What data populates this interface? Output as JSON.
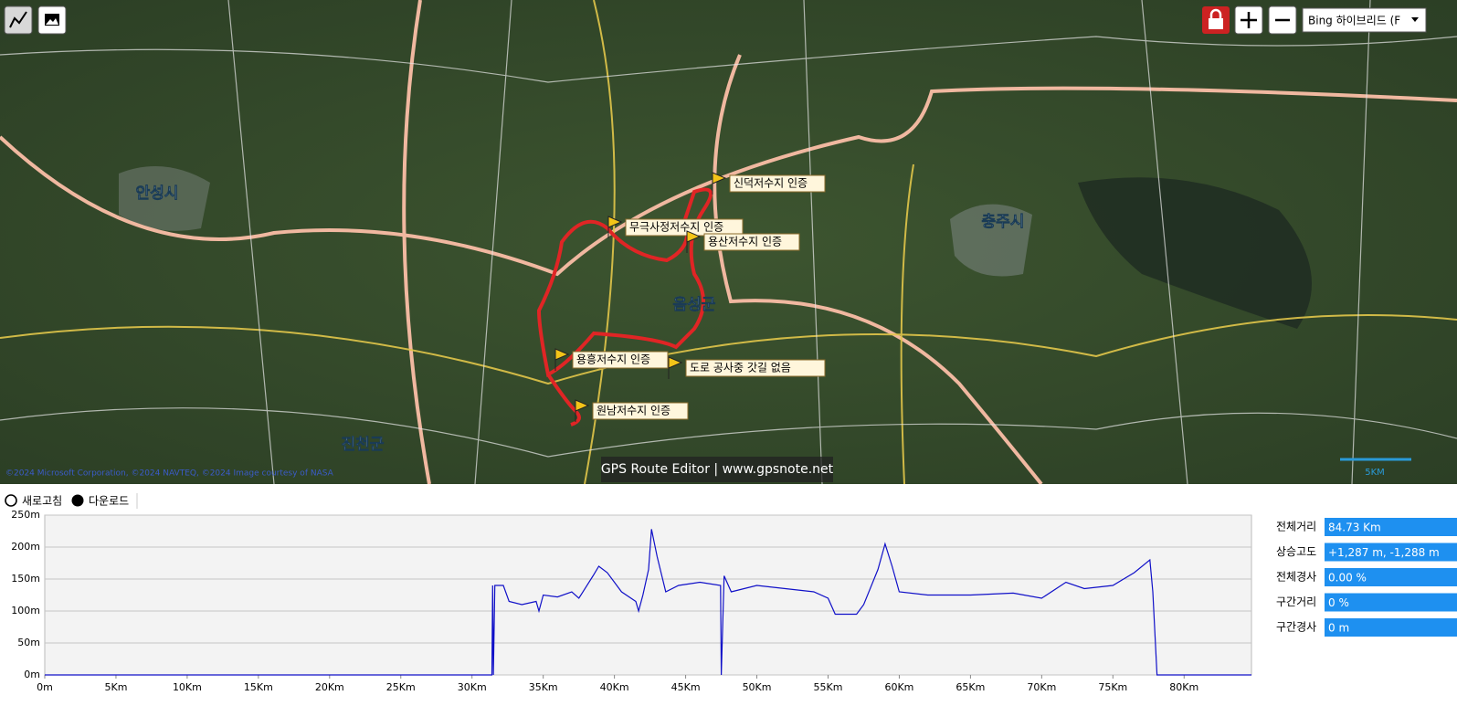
{
  "map_toolbar": {
    "map_type": "Bing 하이브리드 (F"
  },
  "map": {
    "cities": [
      "안성시",
      "충주시",
      "음성군",
      "진천군"
    ],
    "waypoints": [
      "신덕저수지 인증",
      "무극사정저수지 인증",
      "용산저수지 인증",
      "용흥저수지 인증",
      "도로 공사중 갓길 없음",
      "원남저수지 인증"
    ],
    "attribution": "©2024 Microsoft Corporation, ©2024 NAVTEQ, ©2024 Image courtesy of NASA",
    "watermark": "GPS Route Editor | www.gpsnote.net",
    "scale": "5KM"
  },
  "profile_toolbar": {
    "refresh": "새로고침",
    "download": "다운로드"
  },
  "chart_data": {
    "type": "line",
    "color": "#1010c8",
    "x": [
      0,
      31.4,
      31.45,
      31.5,
      31.6,
      32.2,
      32.6,
      33.5,
      34.5,
      34.7,
      35,
      36,
      37,
      37.5,
      38.5,
      38.9,
      39.5,
      40.5,
      41.5,
      41.7,
      42,
      42.4,
      42.6,
      43,
      43.6,
      44.5,
      46,
      47.45,
      47.5,
      47.7,
      48.2,
      50,
      52,
      54,
      55,
      55.5,
      57,
      57.5,
      58.5,
      59,
      59.5,
      60,
      62,
      65,
      68,
      70,
      71.7,
      73,
      75,
      76.5,
      77.6,
      77.8,
      78.1,
      84.73
    ],
    "values": [
      0,
      0,
      140,
      0,
      140,
      140,
      115,
      110,
      115,
      100,
      125,
      122,
      130,
      120,
      155,
      170,
      160,
      130,
      115,
      100,
      125,
      165,
      228,
      185,
      130,
      140,
      145,
      140,
      0,
      155,
      130,
      140,
      135,
      130,
      120,
      95,
      95,
      110,
      165,
      205,
      170,
      130,
      125,
      125,
      128,
      120,
      145,
      135,
      140,
      160,
      180,
      130,
      0,
      0
    ],
    "xlim": [
      0,
      84.73
    ],
    "ylim": [
      0,
      250
    ],
    "xticks": [
      {
        "value": 0,
        "label": "0m"
      },
      {
        "value": 5,
        "label": "5Km"
      },
      {
        "value": 10,
        "label": "10Km"
      },
      {
        "value": 15,
        "label": "15Km"
      },
      {
        "value": 20,
        "label": "20Km"
      },
      {
        "value": 25,
        "label": "25Km"
      },
      {
        "value": 30,
        "label": "30Km"
      },
      {
        "value": 35,
        "label": "35Km"
      },
      {
        "value": 40,
        "label": "40Km"
      },
      {
        "value": 45,
        "label": "45Km"
      },
      {
        "value": 50,
        "label": "50Km"
      },
      {
        "value": 55,
        "label": "55Km"
      },
      {
        "value": 60,
        "label": "60Km"
      },
      {
        "value": 65,
        "label": "65Km"
      },
      {
        "value": 70,
        "label": "70Km"
      },
      {
        "value": 75,
        "label": "75Km"
      },
      {
        "value": 80,
        "label": "80Km"
      }
    ],
    "yticks": [
      {
        "value": 0,
        "label": "0m"
      },
      {
        "value": 50,
        "label": "50m"
      },
      {
        "value": 100,
        "label": "100m"
      },
      {
        "value": 150,
        "label": "150m"
      },
      {
        "value": 200,
        "label": "200m"
      },
      {
        "value": 250,
        "label": "250m"
      }
    ],
    "grid": true
  },
  "stats": [
    {
      "label": "전체거리",
      "value": "84.73 Km"
    },
    {
      "label": "상승고도",
      "value": "+1,287 m, -1,288 m"
    },
    {
      "label": "전체경사",
      "value": "0.00 %"
    },
    {
      "label": "구간거리",
      "value": "0 %"
    },
    {
      "label": "구간경사",
      "value": "0 m"
    }
  ]
}
